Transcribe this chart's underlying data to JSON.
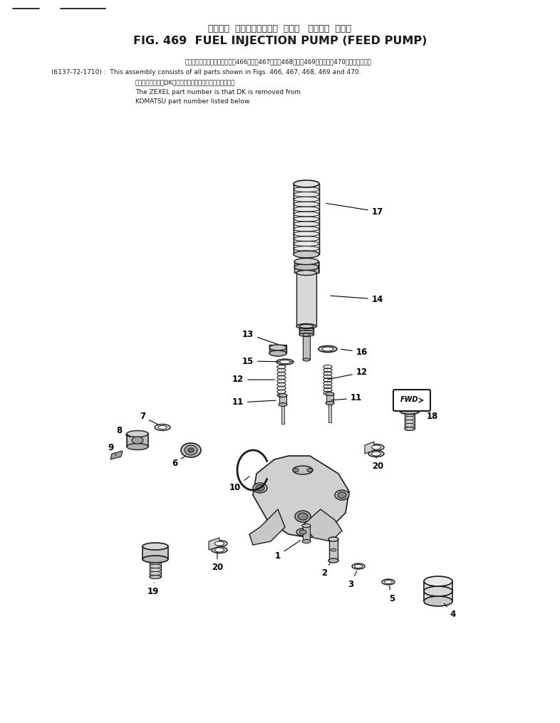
{
  "title_jp": "フェエル  インジェクション  ポンプ   フィード  ポンプ",
  "title_en": "FIG. 469  FUEL INJECTION PUMP (FEED PUMP)",
  "note1_jp": "このアセンブリの構成部品は図466図，図467図，図468図，図469図および図470図を含みます．",
  "note1_en": "(6137-72-1710) :  This assembly consists of all parts shown in Figs. 466, 467, 468, 469 and 470.",
  "note2_jp": "記者のメーカ記号DKを除いたものがゼクセルの番号です．",
  "note2_en": "The ZEXEL part number is that DK is removed from",
  "note3_en": "KOMATSU part number listed below.",
  "bg_color": "#ffffff",
  "line_color": "#1a1a1a"
}
